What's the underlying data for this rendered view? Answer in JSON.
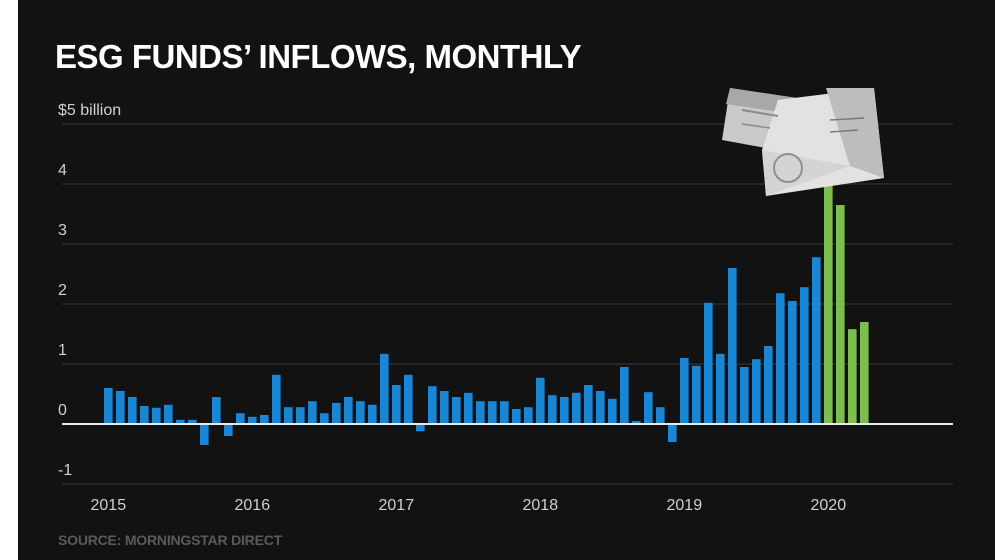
{
  "title": "ESG FUNDS’ INFLOWS, MONTHLY",
  "source": "SOURCE: MORNINGSTAR DIRECT",
  "colors": {
    "background": "#121212",
    "bar_blue": "#1a86d6",
    "bar_green": "#7dbf4e"
  },
  "chart_data": {
    "type": "bar",
    "title": "ESG FUNDS’ INFLOWS, MONTHLY",
    "xlabel": "",
    "ylabel": "",
    "ylim": [
      -1.2,
      5.2
    ],
    "yticks": [
      {
        "value": 5,
        "label": "$5 billion"
      },
      {
        "value": 4,
        "label": "4"
      },
      {
        "value": 3,
        "label": "3"
      },
      {
        "value": 2,
        "label": "2"
      },
      {
        "value": 1,
        "label": "1"
      },
      {
        "value": 0,
        "label": "0"
      },
      {
        "value": -1,
        "label": "-1"
      }
    ],
    "xticks": [
      "2015",
      "2016",
      "2017",
      "2018",
      "2019",
      "2020"
    ],
    "grid": true,
    "highlight_start_index": 60,
    "values": [
      0.6,
      0.55,
      0.45,
      0.3,
      0.27,
      0.32,
      0.07,
      0.07,
      -0.35,
      0.45,
      -0.2,
      0.18,
      0.12,
      0.15,
      0.82,
      0.28,
      0.28,
      0.38,
      0.18,
      0.35,
      0.45,
      0.38,
      0.32,
      1.17,
      0.65,
      0.82,
      -0.12,
      0.63,
      0.55,
      0.45,
      0.52,
      0.38,
      0.38,
      0.38,
      0.25,
      0.28,
      0.77,
      0.48,
      0.45,
      0.52,
      0.65,
      0.55,
      0.42,
      0.95,
      0.05,
      0.53,
      0.28,
      -0.3,
      1.1,
      0.97,
      2.02,
      1.17,
      2.6,
      0.95,
      1.08,
      1.3,
      2.18,
      2.05,
      2.28,
      2.78,
      5.15,
      3.65,
      1.58,
      1.7
    ]
  }
}
